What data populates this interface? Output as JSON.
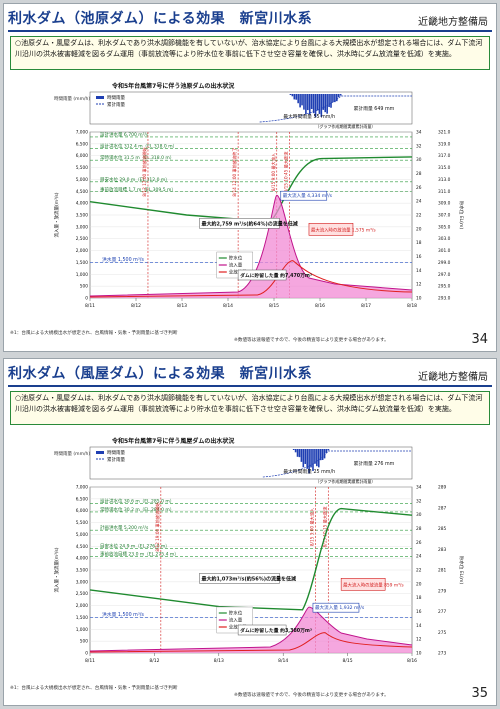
{
  "slides": [
    {
      "title": "利水ダム（池原ダム）による効果　新宮川水系",
      "org": "近畿地方整備局",
      "summary": "○池原ダム・風屋ダムは、利水ダムであり洪水調節機能を有していないが、治水協定により台風による大規模出水が想定される場合には、ダム下流河川沿川の洪水被害軽減を図るダム運用（事前放流等により貯水位を事前に低下させ空き容量を確保し、洪水時にダム放流量を低減）を実施。",
      "chart_title": "令和5年台風第7号に伴う池原ダムの出水状況",
      "max_rain": "最大時間雨量 55 mm/h",
      "total_rain": "累計雨量 649 mm",
      "graph_note": "（グラフ作成期間実績累計雨量）",
      "design_flood": "設計洪水量 6,700 m³/s",
      "design_level": "設計洪水位 312.4 m（EL.318.0 m）",
      "normal_level": "常時満水位 31.5 m（EL.318.0 m）",
      "target_level": "目安水位 29.0 m（EL.312.0 m）",
      "prerelease_level": "事前放流目標 1.7 m（EL.309.5 m）",
      "flood_q": "洪水量 1,500 m³/s",
      "peak_inflow": "最大流入量 4,334 m³/s",
      "reduction": "最大約2,759 m³/s(約64%)の流量を低減",
      "storage": "ダムに貯留した量 約7,470万m³",
      "max_release": "最大流入時の放流量 1,575 m³/s",
      "y1_ticks": [
        "7,000",
        "6,500",
        "6,000",
        "5,500",
        "5,000",
        "4,500",
        "4,000",
        "3,500",
        "3,000",
        "2,500",
        "2,000",
        "1,500",
        "1,000",
        "500",
        "0"
      ],
      "y2_ticks": [
        "321.0",
        "319.0",
        "317.0",
        "315.0",
        "313.0",
        "311.0",
        "309.0",
        "307.0",
        "305.0",
        "303.0",
        "301.0",
        "299.0",
        "297.0",
        "295.0",
        "293.0"
      ],
      "y2b_ticks": [
        "34",
        "32",
        "30",
        "28",
        "26",
        "24",
        "22",
        "20",
        "18",
        "16",
        "14",
        "12",
        "10"
      ],
      "x_ticks": [
        "8/11",
        "8/12",
        "8/13",
        "8/14",
        "8/15",
        "8/16",
        "8/17",
        "8/18"
      ],
      "prerelease_tags": [
        "8/12 17:00 事前放流開始",
        "8/14 12:00 事前放流終了",
        "8/15 9:00 最大流入",
        "8/15 10:45 最大放流"
      ],
      "page": "34",
      "footer_note1": "※1：台風による大規模出水が想定され、台風情報・気象・予測雨量に基づき判断",
      "footer_note2": "※数値等は速報値ですので、今後の精査等により変更する場合があります。",
      "rain_label": "時間雨量 (mm/h)",
      "y1_label": "流入量・放流量(m³/s)",
      "y2_label": "貯水位 EL(m)",
      "legend": {
        "hourly": "時間雨量",
        "cumulative": "累計雨量",
        "level": "貯水位",
        "inflow": "流入量",
        "outflow": "全放流量"
      },
      "ylim": [
        0,
        7000
      ],
      "zlim": [
        293,
        321
      ]
    },
    {
      "title": "利水ダム（風屋ダム）による効果　新宮川水系",
      "org": "近畿地方整備局",
      "summary": "○池原ダム・風屋ダムは、利水ダムであり洪水調節機能を有していないが、治水協定により台風による大規模出水が想定される場合には、ダム下流河川沿川の洪水被害軽減を図るダム運用（事前放流等により貯水位を事前に低下させ空き容量を確保し、洪水時にダム放流量を低減）を実施。",
      "chart_title": "令和5年台風第7号に伴う風屋ダムの出水状況",
      "max_rain": "最大時間雨量 25 mm/h",
      "total_rain": "累計雨量 276 mm",
      "graph_note": "（グラフ作成期間実績累計雨量）",
      "design_flood": "設計洪水位 30.6 m（EL.285.0 m）",
      "design_level": "常時満水位 30.2 m（EL.284.0 m）",
      "normal_level": "計画洪水量 5,200 m³/s",
      "target_level": "目安水位 24.9 m（EL.276.0 m）",
      "prerelease_level": "事前放流目標 23.0 m（EL.275.4 m）",
      "flood_q": "洪水量 1,500 m³/s",
      "peak_inflow": "最大流入量 1,932 m³/s",
      "reduction": "最大約1,073m³/s(約56%)の流量を低減",
      "storage": "ダムに貯留した量 約3,380万m³",
      "max_release": "最大流入時の放流量 859 m³/s",
      "y1_ticks": [
        "7,000",
        "6,500",
        "6,000",
        "5,500",
        "5,000",
        "4,500",
        "4,000",
        "3,500",
        "3,000",
        "2,500",
        "2,000",
        "1,500",
        "1,000",
        "500",
        "0"
      ],
      "y2_ticks": [
        "289",
        "287",
        "285",
        "283",
        "281",
        "279",
        "277",
        "275",
        "273"
      ],
      "y2b_ticks": [
        "34",
        "32",
        "30",
        "28",
        "26",
        "24",
        "22",
        "20",
        "18",
        "16",
        "14",
        "12",
        "10"
      ],
      "x_ticks": [
        "8/11",
        "8/12",
        "8/13",
        "8/14",
        "8/15",
        "8/16"
      ],
      "prerelease_tags": [
        "8/12 19:00 事前放流開始",
        "8/15 3:00 最大流入",
        "8/15 10:15 最大放流"
      ],
      "page": "35",
      "footer_note1": "※1：台風による大規模出水が想定され、台風情報・気象・予測雨量に基づき判断",
      "footer_note2": "※数値等は速報値ですので、今後の精査等により変更する場合があります。",
      "rain_label": "時間雨量 (mm/h)",
      "y1_label": "流入量・放流量(m³/s)",
      "y2_label": "貯水位 EL(m)",
      "legend": {
        "hourly": "時間雨量",
        "cumulative": "累計雨量",
        "level": "貯水位",
        "inflow": "流入量",
        "outflow": "全放流量"
      },
      "ylim": [
        0,
        7000
      ],
      "zlim": [
        271,
        291
      ]
    }
  ]
}
